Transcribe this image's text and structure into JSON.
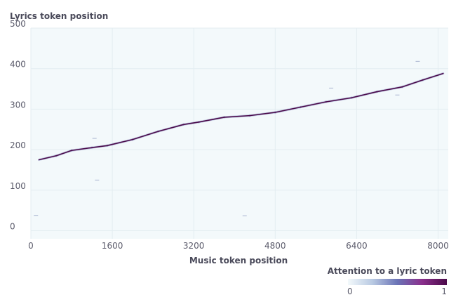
{
  "chart_data": {
    "type": "heatmap",
    "xlabel": "Music token position",
    "ylabel": "Lyrics token position",
    "xlim": [
      0,
      8200
    ],
    "ylim": [
      -20,
      500
    ],
    "xticks": [
      0,
      1600,
      3200,
      4800,
      6400,
      8000
    ],
    "yticks": [
      0,
      100,
      200,
      300,
      400,
      500
    ],
    "grid": true,
    "background_color": "#f3f9fb",
    "colorscale": [
      "#f3f9fb",
      "#b8c9e2",
      "#6a73b6",
      "#8a2f8c",
      "#4b0a4a"
    ],
    "colorbar": {
      "title": "Attention to a lyric token",
      "min_label": "0",
      "max_label": "1"
    },
    "alignment_path": {
      "x": [
        160,
        500,
        800,
        1200,
        1500,
        2000,
        2500,
        3000,
        3300,
        3800,
        4300,
        4800,
        5300,
        5800,
        6300,
        6800,
        7300,
        7700,
        8100
      ],
      "y": [
        175,
        185,
        198,
        205,
        210,
        225,
        245,
        262,
        268,
        280,
        284,
        292,
        305,
        318,
        328,
        343,
        355,
        372,
        388
      ]
    },
    "noise_points": [
      {
        "x": 100,
        "y": 38
      },
      {
        "x": 1250,
        "y": 228
      },
      {
        "x": 1300,
        "y": 125
      },
      {
        "x": 4200,
        "y": 37
      },
      {
        "x": 5900,
        "y": 352
      },
      {
        "x": 7600,
        "y": 418
      },
      {
        "x": 7200,
        "y": 335
      }
    ]
  }
}
